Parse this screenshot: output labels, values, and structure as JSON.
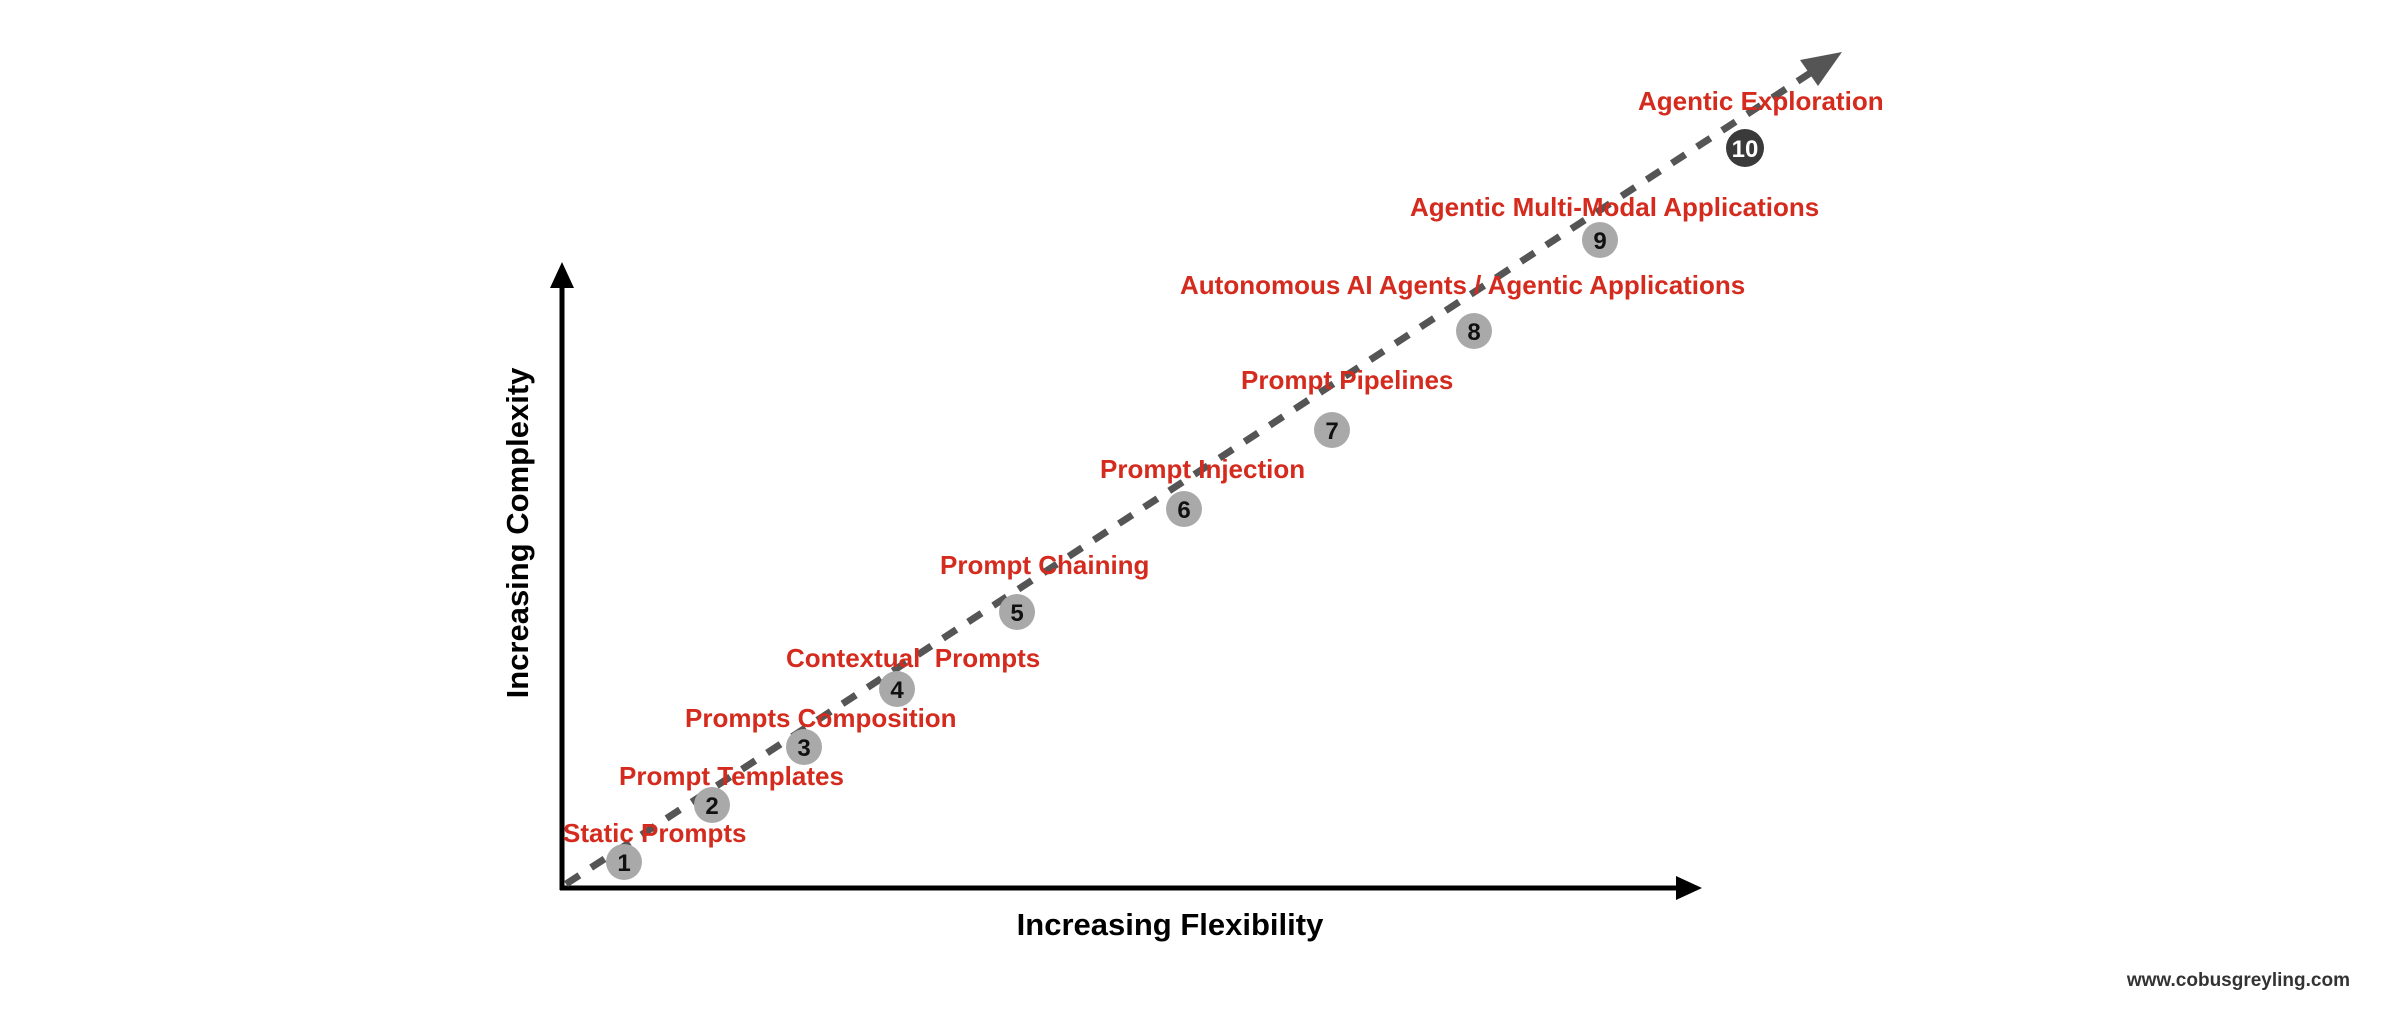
{
  "colors": {
    "label": "#d42b1e",
    "axis": "#000000",
    "trend": "#555555",
    "badge": "#a9a9a9",
    "badge_last": "#3a3a3a",
    "badge_text": "#111111",
    "badge_text_last": "#ffffff"
  },
  "axes": {
    "x_label": "Increasing Flexibility",
    "y_label": "Increasing Complexity"
  },
  "steps": [
    {
      "number": "1",
      "label": "Static Prompts"
    },
    {
      "number": "2",
      "label": "Prompt Templates"
    },
    {
      "number": "3",
      "label": "Prompts Composition"
    },
    {
      "number": "4",
      "label": "Contextual  Prompts"
    },
    {
      "number": "5",
      "label": "Prompt Chaining"
    },
    {
      "number": "6",
      "label": "Prompt Injection"
    },
    {
      "number": "7",
      "label": "Prompt Pipelines"
    },
    {
      "number": "8",
      "label": "Autonomous AI Agents / Agentic Applications"
    },
    {
      "number": "9",
      "label": "Agentic Multi-Modal Applications"
    },
    {
      "number": "10",
      "label": "Agentic Exploration"
    }
  ],
  "credit": "www.cobusgreyling.com"
}
